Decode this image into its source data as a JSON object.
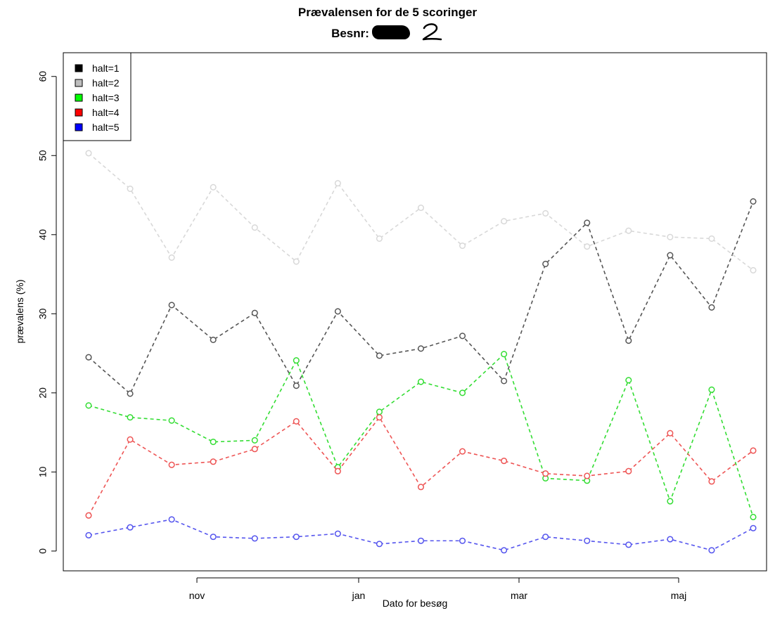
{
  "chart_data": {
    "type": "line",
    "title": "Prævalensen for de 5 scoringer",
    "subtitle": "Besnr:",
    "subtitle_handwritten": "2",
    "xlabel": "Dato for besøg",
    "ylabel": "prævalens (%)",
    "x_ticks": [
      "nov",
      "jan",
      "mar",
      "maj"
    ],
    "y_ticks": [
      0,
      10,
      20,
      30,
      40,
      50,
      60
    ],
    "ylim": [
      -2.5,
      63
    ],
    "legend_position": "top-left",
    "grid": false,
    "line_style": "dashed",
    "marker": "open circle",
    "series": [
      {
        "name": "halt=1",
        "legend_color": "#000000",
        "line_color": "#555555",
        "values": [
          24.5,
          19.9,
          31.1,
          26.7,
          30.1,
          20.9,
          30.3,
          24.7,
          25.6,
          27.2,
          21.5,
          36.3,
          41.5,
          26.6,
          37.4,
          30.8,
          44.2
        ]
      },
      {
        "name": "halt=2",
        "legend_color": "#bebebe",
        "line_color": "#d8d8d8",
        "values": [
          50.3,
          45.8,
          37.1,
          46.0,
          40.9,
          36.6,
          46.5,
          39.5,
          43.4,
          38.6,
          41.7,
          42.7,
          38.5,
          40.5,
          39.7,
          39.5,
          35.5
        ]
      },
      {
        "name": "halt=3",
        "legend_color": "#00ff00",
        "line_color": "#33dd33",
        "values": [
          18.4,
          16.9,
          16.5,
          13.8,
          14.0,
          24.1,
          10.6,
          17.6,
          21.4,
          20.0,
          24.9,
          9.2,
          8.9,
          21.6,
          6.3,
          20.4,
          4.3
        ]
      },
      {
        "name": "halt=4",
        "legend_color": "#ff0000",
        "line_color": "#ee5555",
        "values": [
          4.5,
          14.1,
          10.9,
          11.3,
          12.9,
          16.4,
          10.1,
          16.9,
          8.1,
          12.6,
          11.4,
          9.8,
          9.5,
          10.1,
          14.9,
          8.8,
          12.7
        ]
      },
      {
        "name": "halt=5",
        "legend_color": "#0000ff",
        "line_color": "#5555ee",
        "values": [
          2.0,
          3.0,
          4.0,
          1.8,
          1.6,
          1.8,
          2.2,
          0.9,
          1.3,
          1.3,
          0.1,
          1.8,
          1.3,
          0.8,
          1.5,
          0.1,
          2.9
        ]
      }
    ]
  }
}
